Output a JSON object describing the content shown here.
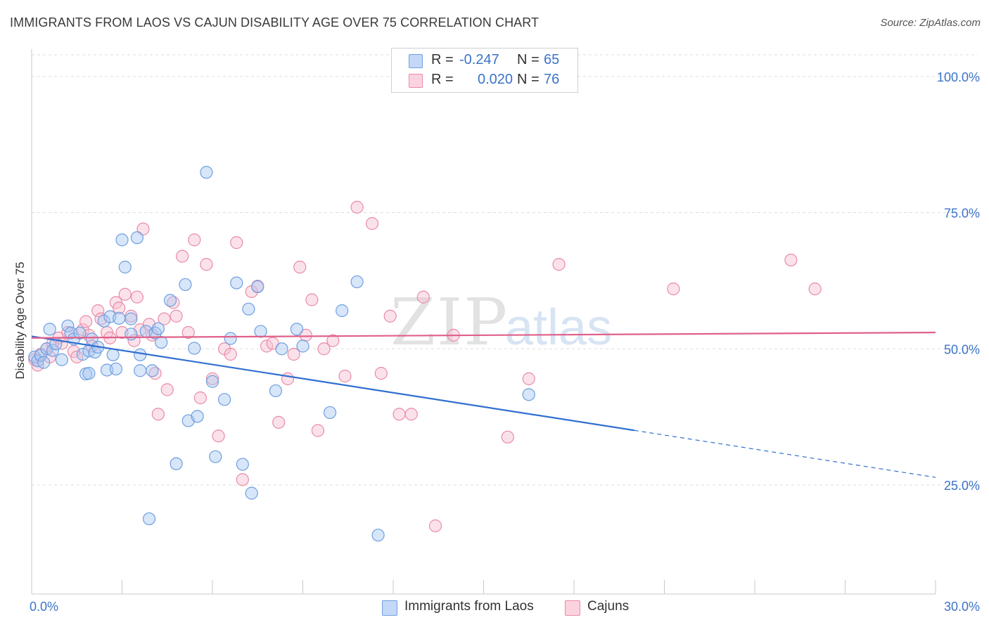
{
  "title": "IMMIGRANTS FROM LAOS VS CAJUN DISABILITY AGE OVER 75 CORRELATION CHART",
  "source": "Source: ZipAtlas.com",
  "watermark": {
    "zip": "ZIP",
    "atlas": "atlas"
  },
  "legend": {
    "series": [
      {
        "r_label": "R =",
        "r_value": "-0.247",
        "n_label": "N =",
        "n_value": "65"
      },
      {
        "r_label": "R =",
        "r_value": "0.020",
        "n_label": "N =",
        "n_value": "76"
      }
    ]
  },
  "colors": {
    "blue_fill": "#a9c8f2",
    "blue_stroke": "#6e9fe0",
    "blue_line": "#2f6fd0",
    "pink_fill": "#f7bfd0",
    "pink_stroke": "#e98aa8",
    "pink_line": "#e0608a",
    "tick_label": "#3b73c9",
    "grid": "#dddddd"
  },
  "chart_data": {
    "type": "scatter",
    "title": "IMMIGRANTS FROM LAOS VS CAJUN DISABILITY AGE OVER 75 CORRELATION CHART",
    "xlabel": "",
    "ylabel": "Disability Age Over 75",
    "xlim": [
      0,
      30
    ],
    "ylim": [
      5,
      105
    ],
    "x_tick_labels": [
      "0.0%",
      "30.0%"
    ],
    "y_ticks": [
      25,
      50,
      75,
      100
    ],
    "y_tick_labels": [
      "25.0%",
      "50.0%",
      "75.0%",
      "100.0%"
    ],
    "grid": true,
    "legend_placement": "top-center",
    "series": [
      {
        "name": "Immigrants from Laos",
        "points": [
          [
            0.1,
            48.5
          ],
          [
            0.2,
            47.8
          ],
          [
            0.3,
            48.8
          ],
          [
            0.4,
            47.5
          ],
          [
            0.5,
            50.0
          ],
          [
            0.6,
            53.6
          ],
          [
            0.7,
            49.7
          ],
          [
            0.8,
            50.9
          ],
          [
            1.0,
            48.0
          ],
          [
            1.2,
            54.2
          ],
          [
            1.3,
            52.9
          ],
          [
            1.4,
            51.8
          ],
          [
            1.6,
            52.9
          ],
          [
            1.7,
            49.0
          ],
          [
            1.8,
            45.4
          ],
          [
            1.9,
            45.5
          ],
          [
            1.9,
            49.6
          ],
          [
            2.0,
            51.8
          ],
          [
            2.1,
            49.4
          ],
          [
            2.2,
            50.3
          ],
          [
            2.4,
            55.1
          ],
          [
            2.5,
            46.1
          ],
          [
            2.6,
            55.9
          ],
          [
            2.7,
            48.9
          ],
          [
            2.8,
            46.3
          ],
          [
            2.9,
            55.6
          ],
          [
            3.0,
            70.0
          ],
          [
            3.1,
            65.0
          ],
          [
            3.3,
            55.5
          ],
          [
            3.3,
            52.7
          ],
          [
            3.5,
            70.4
          ],
          [
            3.6,
            48.9
          ],
          [
            3.6,
            46.0
          ],
          [
            3.8,
            53.2
          ],
          [
            3.9,
            18.8
          ],
          [
            4.0,
            46.0
          ],
          [
            4.1,
            52.9
          ],
          [
            4.2,
            53.7
          ],
          [
            4.3,
            51.2
          ],
          [
            4.6,
            58.9
          ],
          [
            4.8,
            28.9
          ],
          [
            5.1,
            61.8
          ],
          [
            5.2,
            36.8
          ],
          [
            5.4,
            50.1
          ],
          [
            5.5,
            37.6
          ],
          [
            5.8,
            82.4
          ],
          [
            6.0,
            44.0
          ],
          [
            6.1,
            30.2
          ],
          [
            6.4,
            40.7
          ],
          [
            6.6,
            51.9
          ],
          [
            6.8,
            62.1
          ],
          [
            7.0,
            28.8
          ],
          [
            7.2,
            57.3
          ],
          [
            7.3,
            23.5
          ],
          [
            7.5,
            61.4
          ],
          [
            7.6,
            53.2
          ],
          [
            8.1,
            42.3
          ],
          [
            8.3,
            50.0
          ],
          [
            8.8,
            53.6
          ],
          [
            9.0,
            50.5
          ],
          [
            9.9,
            38.3
          ],
          [
            10.3,
            57.0
          ],
          [
            10.8,
            62.3
          ],
          [
            11.5,
            15.8
          ],
          [
            16.5,
            41.6
          ]
        ],
        "trend": {
          "x_start": 0,
          "y_start": 52.3,
          "x_end": 30,
          "y_end": 26.4,
          "solid_until_x": 20.0
        }
      },
      {
        "name": "Cajuns",
        "points": [
          [
            0.1,
            48.0
          ],
          [
            0.2,
            47.0
          ],
          [
            0.3,
            49.0
          ],
          [
            0.5,
            50.0
          ],
          [
            0.6,
            48.5
          ],
          [
            0.7,
            51.0
          ],
          [
            0.9,
            52.0
          ],
          [
            1.0,
            51.0
          ],
          [
            1.2,
            53.0
          ],
          [
            1.4,
            49.5
          ],
          [
            1.5,
            48.5
          ],
          [
            1.7,
            53.5
          ],
          [
            1.8,
            55.0
          ],
          [
            1.9,
            52.5
          ],
          [
            2.0,
            50.5
          ],
          [
            2.2,
            57.0
          ],
          [
            2.3,
            55.5
          ],
          [
            2.5,
            53.0
          ],
          [
            2.6,
            52.0
          ],
          [
            2.8,
            58.5
          ],
          [
            2.9,
            57.5
          ],
          [
            3.0,
            53.0
          ],
          [
            3.1,
            60.0
          ],
          [
            3.3,
            56.0
          ],
          [
            3.4,
            51.5
          ],
          [
            3.5,
            59.5
          ],
          [
            3.6,
            53.5
          ],
          [
            3.7,
            72.0
          ],
          [
            3.9,
            54.5
          ],
          [
            4.0,
            52.5
          ],
          [
            4.1,
            45.5
          ],
          [
            4.2,
            38.0
          ],
          [
            4.4,
            55.5
          ],
          [
            4.5,
            42.5
          ],
          [
            4.7,
            58.5
          ],
          [
            4.8,
            56.0
          ],
          [
            5.0,
            67.0
          ],
          [
            5.2,
            53.0
          ],
          [
            5.4,
            70.0
          ],
          [
            5.6,
            41.0
          ],
          [
            5.8,
            65.5
          ],
          [
            6.0,
            44.5
          ],
          [
            6.2,
            34.0
          ],
          [
            6.4,
            50.0
          ],
          [
            6.6,
            49.0
          ],
          [
            6.8,
            69.5
          ],
          [
            7.0,
            26.0
          ],
          [
            7.3,
            60.5
          ],
          [
            7.5,
            61.5
          ],
          [
            7.8,
            50.5
          ],
          [
            8.0,
            51.0
          ],
          [
            8.2,
            36.5
          ],
          [
            8.5,
            44.5
          ],
          [
            8.7,
            49.0
          ],
          [
            8.9,
            65.0
          ],
          [
            9.1,
            52.5
          ],
          [
            9.3,
            59.0
          ],
          [
            9.5,
            35.0
          ],
          [
            9.7,
            50.0
          ],
          [
            10.0,
            51.5
          ],
          [
            10.4,
            45.0
          ],
          [
            10.8,
            76.0
          ],
          [
            11.3,
            73.0
          ],
          [
            11.6,
            45.5
          ],
          [
            11.9,
            56.0
          ],
          [
            12.2,
            38.0
          ],
          [
            12.6,
            38.0
          ],
          [
            13.0,
            59.5
          ],
          [
            13.4,
            17.5
          ],
          [
            14.0,
            52.5
          ],
          [
            15.8,
            33.8
          ],
          [
            16.5,
            44.5
          ],
          [
            17.5,
            65.5
          ],
          [
            21.3,
            61.0
          ],
          [
            25.2,
            66.3
          ],
          [
            26.0,
            61.0
          ]
        ],
        "trend": {
          "x_start": 0,
          "y_start": 52.0,
          "x_end": 30,
          "y_end": 53.0
        }
      }
    ]
  }
}
